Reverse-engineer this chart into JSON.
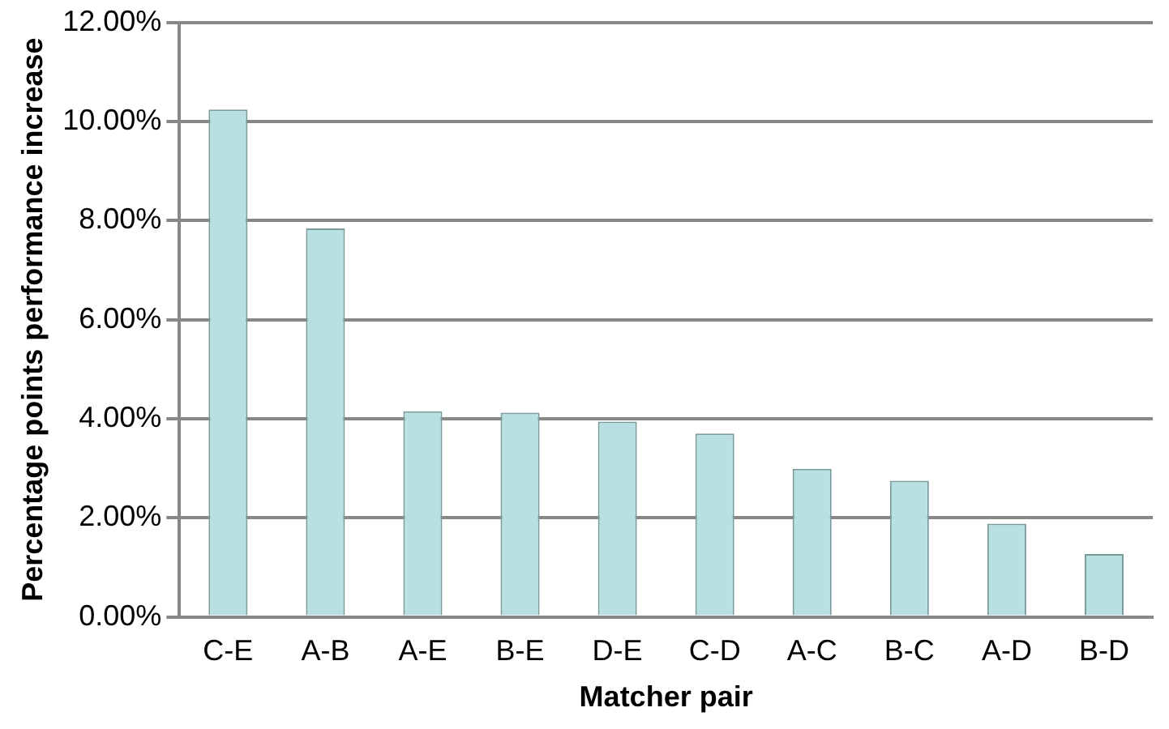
{
  "chart_data": {
    "type": "bar",
    "xlabel": "Matcher pair",
    "ylabel": "Percentage points performance increase",
    "categories": [
      "C-E",
      "A-B",
      "A-E",
      "B-E",
      "D-E",
      "C-D",
      "A-C",
      "B-C",
      "A-D",
      "B-D"
    ],
    "values": [
      10.24,
      7.84,
      4.15,
      4.12,
      3.94,
      3.7,
      2.99,
      2.75,
      1.88,
      1.27
    ],
    "color": "#b8e0e3",
    "ylim": [
      0,
      12
    ],
    "yticks": [
      {
        "value": 0,
        "label": "0.00%"
      },
      {
        "value": 2,
        "label": "2.00%"
      },
      {
        "value": 4,
        "label": "4.00%"
      },
      {
        "value": 6,
        "label": "6.00%"
      },
      {
        "value": 8,
        "label": "8.00%"
      },
      {
        "value": 10,
        "label": "10.00%"
      },
      {
        "value": 12,
        "label": "12.00%"
      }
    ],
    "grid": "y"
  }
}
